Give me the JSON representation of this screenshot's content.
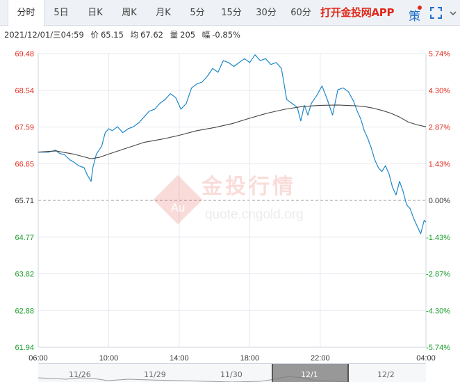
{
  "tabs": [
    {
      "label": "分时",
      "active": true
    },
    {
      "label": "5日"
    },
    {
      "label": "日K"
    },
    {
      "label": "周K"
    },
    {
      "label": "月K"
    },
    {
      "label": "5分"
    },
    {
      "label": "15分"
    },
    {
      "label": "30分"
    },
    {
      "label": "60分"
    }
  ],
  "app_link": "打开金投网APP",
  "policy_icon_label": "策",
  "info": {
    "datetime": "2021/12/01/三04:59",
    "price_label": "价",
    "price": "65.15",
    "avg_label": "均",
    "avg": "67.62",
    "volume_label": "量",
    "volume": "205",
    "amplitude_label": "幅",
    "amplitude": "-0.85%"
  },
  "watermark": {
    "badge": "Au",
    "brand": "金投行情",
    "url": "quote.cngold.org"
  },
  "colors": {
    "price_line": "#1e88c8",
    "avg_line": "#444444",
    "up": "#e02a1c",
    "down": "#1a9e2c",
    "grid": "#e3e8ee"
  },
  "navigator": {
    "dates": [
      "11/26",
      "11/29",
      "11/30",
      "12/1",
      "12/2"
    ]
  },
  "chart_data": {
    "type": "line",
    "prev_close": 65.71,
    "ylim": [
      61.94,
      69.48
    ],
    "y_ticks": [
      "69.48",
      "68.54",
      "67.59",
      "66.65",
      "65.71",
      "64.77",
      "63.82",
      "62.88",
      "61.94"
    ],
    "pct_ticks": [
      "5.74%",
      "4.30%",
      "2.87%",
      "1.43%",
      "0.00%",
      "-1.43%",
      "-2.87%",
      "-4.30%",
      "-5.74%"
    ],
    "x_ticks": [
      "06:00",
      "10:00",
      "14:00",
      "18:00",
      "22:00",
      "04:00"
    ],
    "x_hours": [
      0,
      4,
      8,
      12,
      16,
      22
    ],
    "xlim_hours": [
      0,
      22
    ],
    "series": [
      {
        "key": "price",
        "x_hours": [
          0.0,
          0.6,
          1.0,
          1.2,
          1.5,
          1.8,
          2.0,
          2.3,
          2.6,
          2.8,
          3.0,
          3.1,
          3.3,
          3.6,
          3.8,
          4.0,
          4.2,
          4.5,
          4.8,
          5.1,
          5.4,
          5.7,
          6.0,
          6.3,
          6.6,
          6.9,
          7.2,
          7.5,
          7.8,
          8.1,
          8.4,
          8.7,
          9.0,
          9.3,
          9.6,
          9.9,
          10.2,
          10.5,
          10.8,
          11.1,
          11.4,
          11.7,
          12.0,
          12.3,
          12.6,
          12.9,
          13.2,
          13.5,
          13.8,
          14.1,
          14.4,
          14.7,
          14.9,
          15.1,
          15.3,
          15.5,
          15.8,
          16.1,
          16.4,
          16.7,
          17.0,
          17.3,
          17.6,
          17.9,
          18.1,
          18.3,
          18.5,
          18.7,
          18.9,
          19.1,
          19.3,
          19.5,
          19.7,
          19.9,
          20.1,
          20.3,
          20.5,
          20.7,
          20.9,
          21.1,
          21.3,
          21.5,
          21.7,
          21.9,
          22.0
        ],
        "values": [
          66.95,
          66.95,
          67.0,
          66.92,
          66.88,
          66.75,
          66.7,
          66.6,
          66.55,
          66.35,
          66.2,
          66.55,
          66.9,
          67.1,
          67.45,
          67.55,
          67.5,
          67.6,
          67.45,
          67.55,
          67.6,
          67.7,
          67.85,
          68.0,
          68.05,
          68.2,
          68.3,
          68.45,
          68.35,
          68.05,
          68.2,
          68.6,
          68.7,
          68.75,
          68.9,
          69.1,
          69.0,
          69.3,
          69.25,
          69.15,
          69.25,
          69.35,
          69.25,
          69.45,
          69.3,
          69.35,
          69.2,
          69.25,
          69.1,
          68.3,
          68.2,
          68.1,
          67.75,
          68.15,
          67.9,
          68.2,
          68.4,
          68.65,
          68.3,
          67.9,
          68.55,
          68.6,
          68.5,
          68.25,
          68.0,
          67.8,
          67.5,
          67.3,
          67.05,
          66.75,
          66.55,
          66.45,
          66.6,
          66.4,
          66.05,
          65.85,
          66.2,
          65.95,
          65.6,
          65.5,
          65.25,
          65.05,
          64.85,
          65.2,
          65.15
        ]
      },
      {
        "key": "average",
        "x_hours": [
          0.0,
          1.0,
          2.0,
          3.0,
          3.5,
          4.0,
          5.0,
          6.0,
          7.0,
          8.0,
          9.0,
          10.0,
          11.0,
          12.0,
          13.0,
          14.0,
          15.0,
          16.0,
          17.0,
          18.0,
          18.5,
          19.0,
          19.5,
          20.0,
          20.5,
          21.0,
          21.5,
          22.0
        ],
        "values": [
          66.95,
          66.98,
          66.9,
          66.78,
          66.82,
          66.9,
          67.05,
          67.2,
          67.28,
          67.38,
          67.5,
          67.58,
          67.68,
          67.82,
          67.95,
          68.05,
          68.12,
          68.15,
          68.16,
          68.14,
          68.12,
          68.08,
          68.02,
          67.95,
          67.85,
          67.72,
          67.65,
          67.6
        ]
      }
    ]
  }
}
